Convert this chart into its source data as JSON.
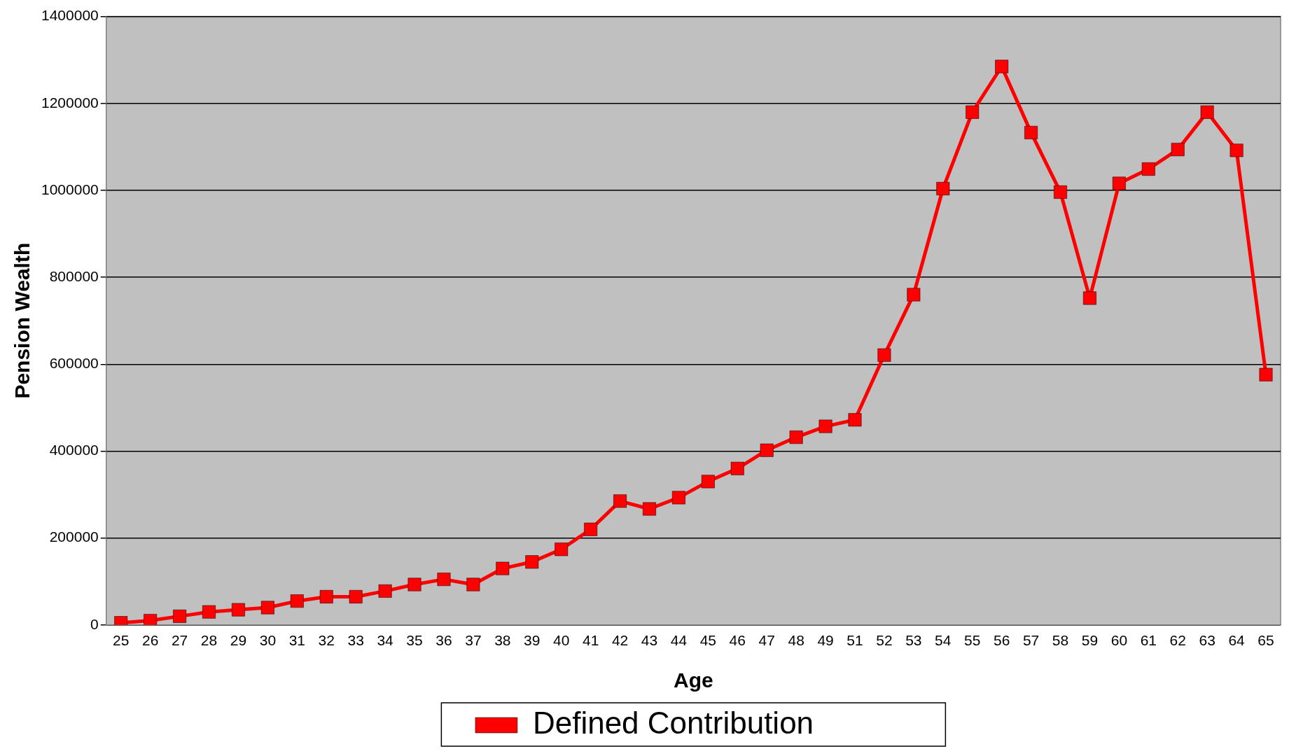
{
  "chart_data": {
    "type": "line",
    "xlabel": "Age",
    "ylabel": "Pension Wealth",
    "categories": [
      "25",
      "26",
      "27",
      "28",
      "29",
      "30",
      "31",
      "32",
      "33",
      "34",
      "35",
      "36",
      "37",
      "38",
      "39",
      "40",
      "41",
      "42",
      "43",
      "44",
      "45",
      "46",
      "47",
      "48",
      "49",
      "51",
      "52",
      "53",
      "54",
      "55",
      "56",
      "57",
      "58",
      "59",
      "60",
      "61",
      "62",
      "63",
      "64",
      "65"
    ],
    "series": [
      {
        "name": "Defined Contribution",
        "color": "#ff0000",
        "values": [
          5000,
          10000,
          20000,
          30000,
          35000,
          40000,
          55000,
          65000,
          65000,
          78000,
          93000,
          105000,
          93000,
          130000,
          145000,
          174000,
          220000,
          285000,
          267000,
          293000,
          330000,
          360000,
          402000,
          432000,
          457000,
          472000,
          621000,
          760000,
          1004000,
          1180000,
          1285000,
          1133000,
          996000,
          752000,
          1016000,
          1049000,
          1094000,
          1180000,
          1092000,
          576000
        ]
      }
    ],
    "ylim": [
      0,
      1400000
    ],
    "yticks": [
      0,
      200000,
      400000,
      600000,
      800000,
      1000000,
      1200000,
      1400000
    ],
    "grid": "y",
    "legend": "bottom",
    "marker": "square",
    "line_style": "solid"
  }
}
